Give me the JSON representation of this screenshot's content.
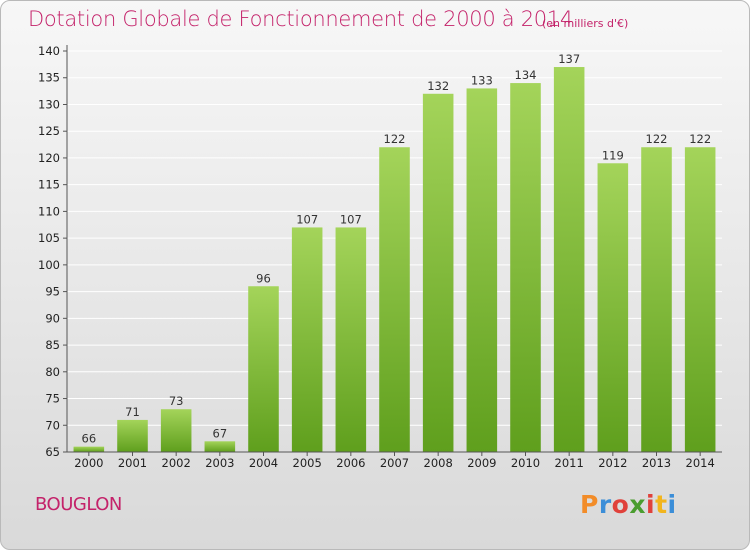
{
  "title": "Dotation Globale de Fonctionnement de 2000 à 2014",
  "unit": "(en milliers d'€)",
  "place": "BOUGLON",
  "brand": {
    "text": "Proxiti",
    "letter_colors": [
      "#f28c28",
      "#3b8ed8",
      "#e0413b",
      "#4a9d2f",
      "#e0413b",
      "#f2b51d",
      "#3b8ed8"
    ]
  },
  "colors": {
    "bar_light": "#a4d45a",
    "bar_dark": "#5f9f1d",
    "text": "#c4226a",
    "grid": "#ffffff"
  },
  "chart_data": {
    "type": "bar",
    "title": "Dotation Globale de Fonctionnement de 2000 à 2014",
    "categories": [
      "2000",
      "2001",
      "2002",
      "2003",
      "2004",
      "2005",
      "2006",
      "2007",
      "2008",
      "2009",
      "2010",
      "2011",
      "2012",
      "2013",
      "2014"
    ],
    "values": [
      66,
      71,
      73,
      67,
      96,
      107,
      107,
      122,
      132,
      133,
      134,
      137,
      119,
      122,
      122
    ],
    "ylim": [
      65,
      140
    ],
    "yticks": [
      65,
      70,
      75,
      80,
      85,
      90,
      95,
      100,
      105,
      110,
      115,
      120,
      125,
      130,
      135,
      140
    ],
    "grid": true,
    "data_labels": true
  }
}
